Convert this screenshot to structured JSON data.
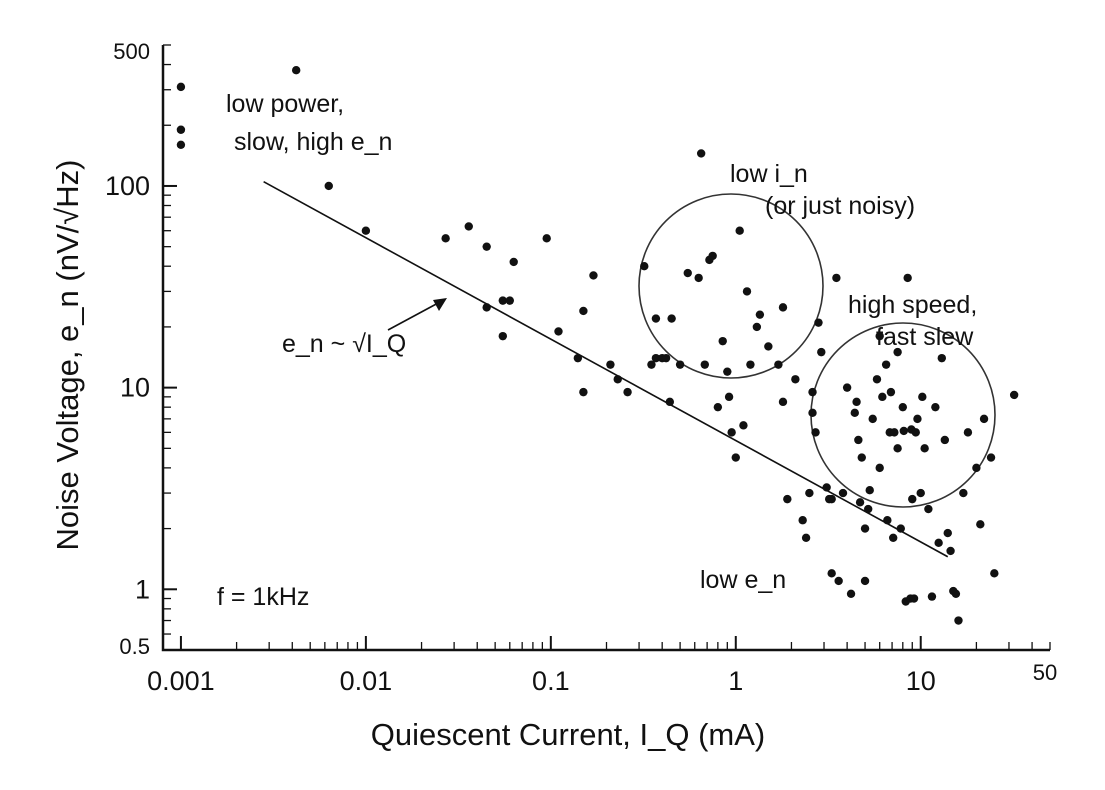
{
  "chart_data": {
    "type": "scatter",
    "xlabel": "Quiescent Current, I_Q (mA)",
    "ylabel": "Noise Voltage, e_n (nV/√Hz)",
    "xscale": "log",
    "yscale": "log",
    "xlim": [
      0.0008,
      50
    ],
    "ylim": [
      0.5,
      500
    ],
    "xticks": [
      "0.001",
      "0.01",
      "0.1",
      "1",
      "10",
      "50"
    ],
    "yticks": [
      "0.5",
      "1",
      "10",
      "100",
      "500"
    ],
    "grid": false,
    "trend_line": {
      "label": "e_n ~ √I_Q",
      "x": [
        0.0028,
        14
      ],
      "y": [
        105,
        1.45
      ]
    },
    "annotations": {
      "low_power_1": "low power,",
      "low_power_2": "slow, high e_n",
      "low_in_1": "low i_n",
      "low_in_2": "(or just noisy)",
      "high_speed_1": "high speed,",
      "high_speed_2": "fast slew",
      "low_en": "low e_n",
      "freq": "f = 1kHz"
    },
    "regions": [
      {
        "label": "low i_n (or just noisy)",
        "center": [
          1.0,
          25
        ],
        "radius_decades": 0.55
      },
      {
        "label": "high speed, fast slew",
        "center": [
          8.5,
          7
        ],
        "radius_decades": 0.55
      }
    ],
    "points": [
      [
        0.001,
        310
      ],
      [
        0.001,
        190
      ],
      [
        0.001,
        160
      ],
      [
        0.0042,
        375
      ],
      [
        0.0063,
        100
      ],
      [
        0.01,
        60
      ],
      [
        0.027,
        55
      ],
      [
        0.036,
        63
      ],
      [
        0.045,
        50
      ],
      [
        0.063,
        42
      ],
      [
        0.045,
        25
      ],
      [
        0.055,
        27
      ],
      [
        0.06,
        27
      ],
      [
        0.055,
        18
      ],
      [
        0.095,
        55
      ],
      [
        0.11,
        19
      ],
      [
        0.14,
        14
      ],
      [
        0.15,
        24
      ],
      [
        0.15,
        9.5
      ],
      [
        0.17,
        36
      ],
      [
        0.21,
        13
      ],
      [
        0.23,
        11
      ],
      [
        0.26,
        9.5
      ],
      [
        0.32,
        40
      ],
      [
        0.35,
        13
      ],
      [
        0.37,
        14
      ],
      [
        0.4,
        14
      ],
      [
        0.42,
        14
      ],
      [
        0.44,
        8.5
      ],
      [
        0.37,
        22
      ],
      [
        0.45,
        22
      ],
      [
        0.5,
        13
      ],
      [
        0.55,
        37
      ],
      [
        0.63,
        35
      ],
      [
        0.65,
        145
      ],
      [
        0.68,
        13
      ],
      [
        0.72,
        43
      ],
      [
        0.75,
        45
      ],
      [
        0.8,
        8
      ],
      [
        0.85,
        17
      ],
      [
        0.9,
        12
      ],
      [
        0.92,
        9
      ],
      [
        0.95,
        6
      ],
      [
        1.0,
        4.5
      ],
      [
        1.05,
        60
      ],
      [
        1.1,
        6.5
      ],
      [
        1.15,
        30
      ],
      [
        1.2,
        13
      ],
      [
        1.3,
        20
      ],
      [
        1.35,
        23
      ],
      [
        1.5,
        16
      ],
      [
        1.7,
        13
      ],
      [
        1.8,
        25
      ],
      [
        1.8,
        8.5
      ],
      [
        1.9,
        2.8
      ],
      [
        2.1,
        11
      ],
      [
        2.3,
        2.2
      ],
      [
        2.4,
        1.8
      ],
      [
        2.5,
        3.0
      ],
      [
        2.6,
        9.5
      ],
      [
        2.7,
        6
      ],
      [
        2.8,
        21
      ],
      [
        2.9,
        15
      ],
      [
        3.1,
        3.2
      ],
      [
        3.3,
        2.8
      ],
      [
        3.5,
        35
      ],
      [
        3.6,
        1.1
      ],
      [
        3.8,
        3.0
      ],
      [
        4.0,
        10
      ],
      [
        4.2,
        0.95
      ],
      [
        4.4,
        7.5
      ],
      [
        4.6,
        5.5
      ],
      [
        4.8,
        4.5
      ],
      [
        5.0,
        1.1
      ],
      [
        5.2,
        2.5
      ],
      [
        5.5,
        7
      ],
      [
        5.8,
        11
      ],
      [
        6.0,
        4
      ],
      [
        6.2,
        9
      ],
      [
        6.5,
        13
      ],
      [
        6.8,
        6
      ],
      [
        7.2,
        6
      ],
      [
        7.5,
        5
      ],
      [
        7.8,
        2.0
      ],
      [
        8.0,
        8
      ],
      [
        8.5,
        35
      ],
      [
        8.3,
        0.87
      ],
      [
        8.8,
        0.9
      ],
      [
        9.2,
        0.9
      ],
      [
        9.6,
        7
      ],
      [
        10,
        3
      ],
      [
        10.5,
        5
      ],
      [
        11,
        2.5
      ],
      [
        12,
        8
      ],
      [
        13,
        14
      ],
      [
        14,
        1.9
      ],
      [
        15,
        0.98
      ],
      [
        16,
        0.7
      ],
      [
        17,
        3
      ],
      [
        18,
        6
      ],
      [
        20,
        4
      ],
      [
        21,
        2.1
      ],
      [
        22,
        7
      ],
      [
        24,
        4.5
      ],
      [
        25,
        1.2
      ],
      [
        32,
        9.2
      ],
      [
        3.2,
        2.8
      ],
      [
        4.7,
        2.7
      ],
      [
        5.3,
        3.1
      ],
      [
        6.6,
        2.2
      ],
      [
        7.1,
        1.8
      ],
      [
        9.0,
        2.8
      ],
      [
        12.5,
        1.7
      ],
      [
        14.5,
        1.55
      ],
      [
        15.5,
        0.95
      ],
      [
        11.5,
        0.92
      ],
      [
        8.1,
        6.1
      ],
      [
        8.9,
        6.2
      ],
      [
        9.4,
        6.0
      ],
      [
        7.5,
        15
      ],
      [
        6.0,
        18
      ],
      [
        4.5,
        8.5
      ],
      [
        3.3,
        1.2
      ],
      [
        2.6,
        7.5
      ],
      [
        5.0,
        2.0
      ],
      [
        6.9,
        9.5
      ],
      [
        10.2,
        9
      ],
      [
        13.5,
        5.5
      ]
    ]
  }
}
